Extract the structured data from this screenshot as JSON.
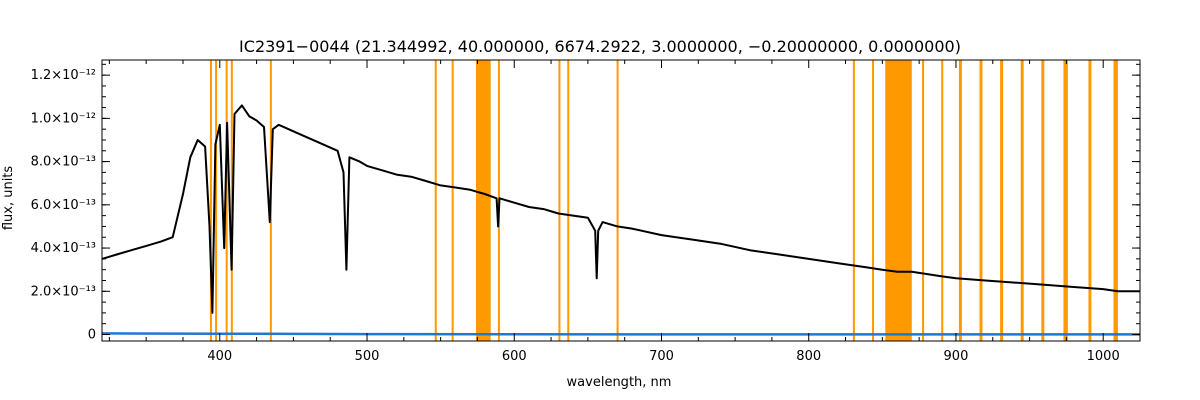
{
  "chart_data": {
    "type": "line",
    "title": "IC2391−0044   (21.344992, 40.000000, 6674.2922, 3.0000000, −0.20000000, 0.0000000)",
    "xlabel": "wavelength, nm",
    "ylabel": "flux, units",
    "xlim": [
      320,
      1025
    ],
    "ylim": [
      -3e-14,
      1.27e-12
    ],
    "x_ticks": [
      {
        "value": 400,
        "label": "400"
      },
      {
        "value": 500,
        "label": "500"
      },
      {
        "value": 600,
        "label": "600"
      },
      {
        "value": 700,
        "label": "700"
      },
      {
        "value": 800,
        "label": "800"
      },
      {
        "value": 900,
        "label": "900"
      },
      {
        "value": 1000,
        "label": "1000"
      }
    ],
    "y_ticks": [
      {
        "value": 0,
        "label": "0"
      },
      {
        "value": 2e-13,
        "label": "2.0×10⁻¹³"
      },
      {
        "value": 4e-13,
        "label": "4.0×10⁻¹³"
      },
      {
        "value": 6e-13,
        "label": "6.0×10⁻¹³"
      },
      {
        "value": 8e-13,
        "label": "8.0×10⁻¹³"
      },
      {
        "value": 1e-12,
        "label": "1.0×10⁻¹²"
      },
      {
        "value": 1.2e-12,
        "label": "1.2×10⁻¹²"
      }
    ],
    "grid": false,
    "series": [
      {
        "color": "#000000",
        "x": [
          320,
          330,
          340,
          350,
          360,
          368,
          375,
          380,
          385,
          390,
          393,
          395,
          397,
          400,
          403,
          405,
          408,
          410,
          415,
          420,
          425,
          430,
          434,
          436,
          440,
          450,
          460,
          470,
          480,
          484,
          486,
          488,
          495,
          500,
          510,
          520,
          530,
          540,
          550,
          560,
          570,
          575,
          580,
          588,
          589,
          590,
          600,
          610,
          620,
          630,
          640,
          650,
          655,
          656,
          657,
          660,
          670,
          680,
          700,
          720,
          740,
          760,
          780,
          800,
          820,
          840,
          850,
          860,
          870,
          880,
          890,
          900,
          920,
          940,
          960,
          980,
          1000,
          1010,
          1025
        ],
        "y": [
          3.5e-13,
          3.7e-13,
          3.9e-13,
          4.1e-13,
          4.3e-13,
          4.5e-13,
          6.5e-13,
          8.2e-13,
          9e-13,
          8.7e-13,
          5e-13,
          1e-13,
          8.8e-13,
          9.7e-13,
          4e-13,
          9.8e-13,
          3e-13,
          1.02e-12,
          1.06e-12,
          1.01e-12,
          9.9e-13,
          9.6e-13,
          5.2e-13,
          9.5e-13,
          9.7e-13,
          9.4e-13,
          9.1e-13,
          8.8e-13,
          8.5e-13,
          7.5e-13,
          3e-13,
          8.2e-13,
          8e-13,
          7.8e-13,
          7.6e-13,
          7.4e-13,
          7.3e-13,
          7.1e-13,
          6.9e-13,
          6.8e-13,
          6.7e-13,
          6.6e-13,
          6.5e-13,
          6.3e-13,
          5e-13,
          6.3e-13,
          6.1e-13,
          5.9e-13,
          5.8e-13,
          5.6e-13,
          5.5e-13,
          5.4e-13,
          4.8e-13,
          2.6e-13,
          4.8e-13,
          5.2e-13,
          5e-13,
          4.9e-13,
          4.6e-13,
          4.4e-13,
          4.2e-13,
          3.9e-13,
          3.7e-13,
          3.5e-13,
          3.3e-13,
          3.1e-13,
          3e-13,
          2.9e-13,
          2.9e-13,
          2.8e-13,
          2.7e-13,
          2.6e-13,
          2.5e-13,
          2.4e-13,
          2.3e-13,
          2.2e-13,
          2.1e-13,
          2e-13,
          2e-13
        ]
      },
      {
        "color": "#1f77d4",
        "x": [
          320,
          400,
          500,
          600,
          700,
          800,
          900,
          1000,
          1025
        ],
        "y": [
          5e-15,
          4e-15,
          2e-15,
          1e-15,
          5e-16,
          5e-16,
          5e-16,
          5e-16,
          5e-16
        ]
      }
    ],
    "mask_bands": {
      "color": "#ff9900",
      "ranges": [
        [
          393.3,
          393.9
        ],
        [
          396.8,
          397.4
        ],
        [
          404.0,
          404.6
        ],
        [
          407.5,
          408.1
        ],
        [
          434.0,
          434.7
        ],
        [
          546.0,
          546.5
        ],
        [
          557.5,
          558.0
        ],
        [
          574.0,
          584.0
        ],
        [
          588.9,
          589.6
        ],
        [
          630.0,
          630.6
        ],
        [
          636.0,
          636.6
        ],
        [
          669.5,
          670.2
        ],
        [
          830.0,
          830.7
        ],
        [
          843.0,
          843.7
        ],
        [
          852.0,
          870.0
        ],
        [
          877.0,
          878.0
        ],
        [
          890.0,
          891.0
        ],
        [
          902.0,
          904.0
        ],
        [
          916.0,
          918.0
        ],
        [
          930.0,
          932.0
        ],
        [
          944.0,
          946.0
        ],
        [
          958.0,
          960.0
        ],
        [
          973.0,
          976.0
        ],
        [
          990.0,
          992.0
        ],
        [
          1007.0,
          1010.0
        ]
      ]
    }
  }
}
